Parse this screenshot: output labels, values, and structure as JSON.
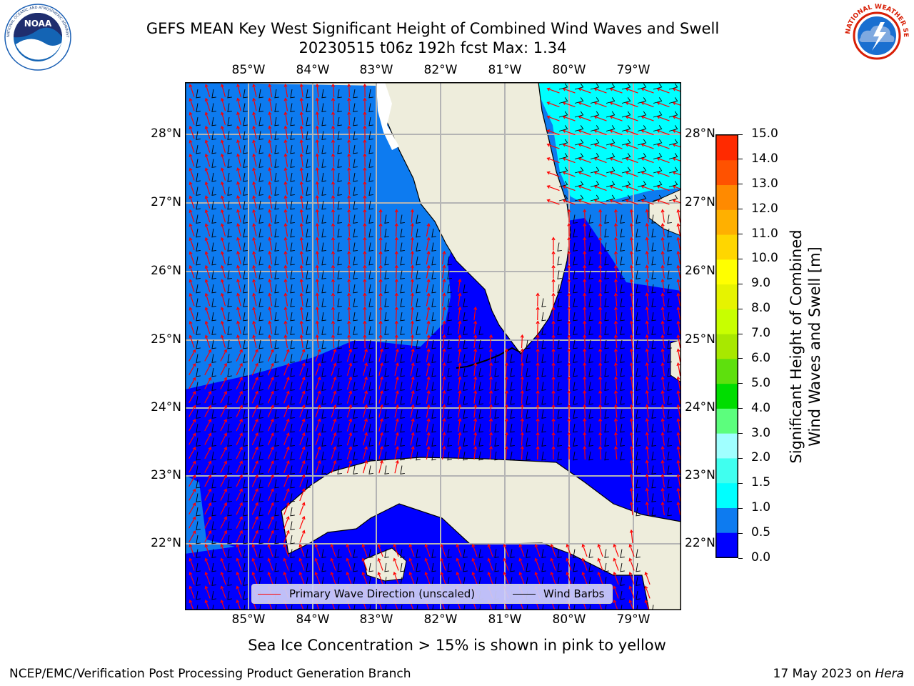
{
  "header": {
    "title_line1": "GEFS MEAN Key West Significant Height of Combined Wind Waves and Swell",
    "title_line2": "20230515 t06z 192h fcst   Max: 1.34"
  },
  "logos": {
    "left": {
      "name": "NOAA",
      "ring_text": "NATIONAL OCEANIC AND ATMOSPHERIC ADMINISTRATION",
      "bottom_text": "U.S. DEPARTMENT OF COMMERCE",
      "color": "#1a5fb4"
    },
    "right": {
      "name": "NATIONAL WEATHER SERVICE",
      "color": "#d81e05"
    }
  },
  "map": {
    "lon_labels": [
      "85°W",
      "84°W",
      "83°W",
      "82°W",
      "81°W",
      "80°W",
      "79°W"
    ],
    "lat_labels": [
      "28°N",
      "27°N",
      "26°N",
      "25°N",
      "24°N",
      "23°N",
      "22°N"
    ],
    "land_color": "#eeeddc",
    "grid_color": "#b4b4b4"
  },
  "legend": {
    "wave_label": "Primary Wave Direction (unscaled)",
    "barb_label": "Wind Barbs",
    "wave_color": "#ff0000",
    "barb_color": "#000000"
  },
  "colorbar": {
    "ticks": [
      "15.0",
      "14.0",
      "13.0",
      "12.0",
      "11.0",
      "10.0",
      "9.0",
      "8.0",
      "7.0",
      "6.0",
      "5.0",
      "4.0",
      "3.0",
      "2.0",
      "1.5",
      "1.0",
      "0.5",
      "0.0"
    ],
    "colors_bottom_to_top": [
      "#0000ff",
      "#0d7bf0",
      "#00ffff",
      "#40ffef",
      "#a0ffff",
      "#5cfe7d",
      "#00dd00",
      "#5ee00d",
      "#a8e800",
      "#c8ff00",
      "#e6f300",
      "#ffff00",
      "#ffd600",
      "#ffb000",
      "#ff8a00",
      "#ff5200",
      "#ff2a00"
    ],
    "label_line1": "Significant Height of Combined",
    "label_line2": "Wind Waves and Swell [m]"
  },
  "caption": "Sea Ice Concentration > 15% is shown in pink to yellow",
  "footer": {
    "left": "NCEP/EMC/Verification Post Processing Product Generation Branch",
    "right_prefix": "17 May 2023 on ",
    "right_host": "Hera"
  }
}
